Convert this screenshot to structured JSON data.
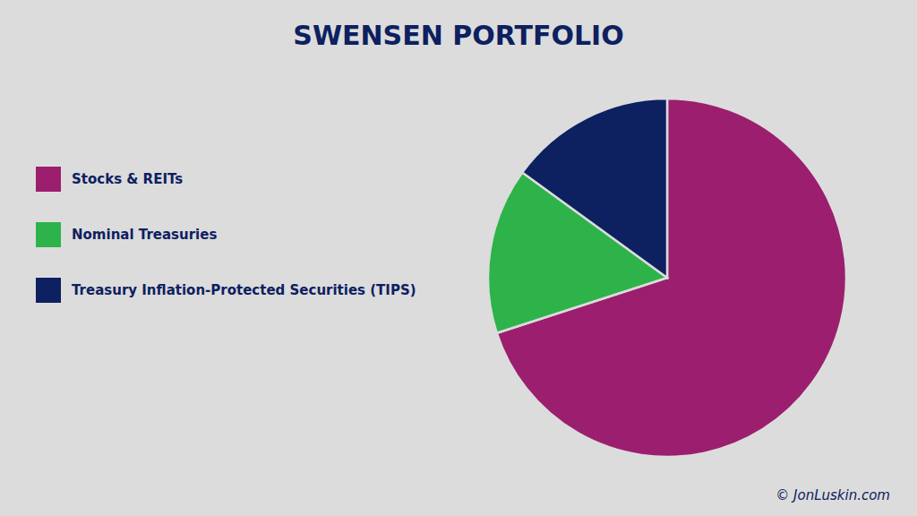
{
  "chart_data": {
    "type": "pie",
    "title": "SWENSEN PORTFOLIO",
    "categories": [
      "Stocks & REITs",
      "Nominal Treasuries",
      "Treasury Inflation-Protected Securities (TIPS)"
    ],
    "values": [
      70,
      15,
      15
    ],
    "colors": [
      "#9b1f6e",
      "#2db34a",
      "#0d2060"
    ],
    "legend": "left",
    "annotations": [
      "© JonLuskin.com"
    ]
  }
}
